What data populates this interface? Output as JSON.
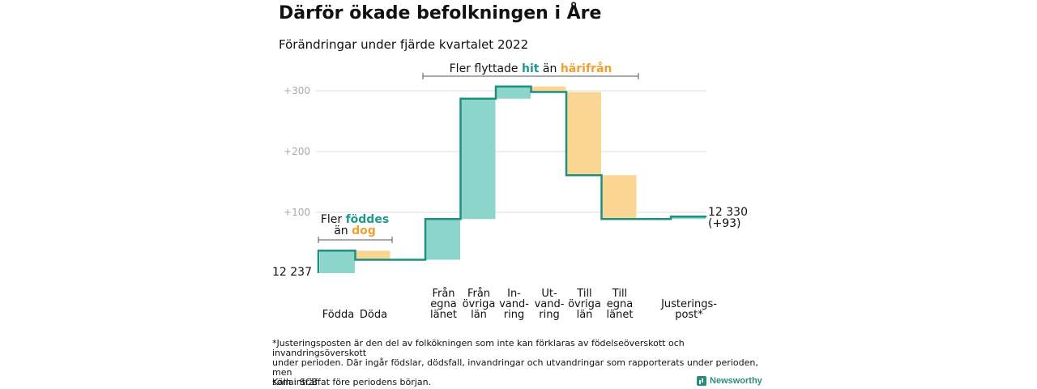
{
  "title": "Därför ökade befolkningen i Åre",
  "subtitle": "Förändringar under fjärde kvartalet 2022",
  "colors": {
    "teal": "#8cd5cb",
    "orange": "#fbd592",
    "line": "#1e9080",
    "tealText": "#1e9a8a",
    "orangeText": "#f0a030",
    "grid": "#dddddd"
  },
  "annotations": {
    "flows": {
      "pre": "Fler flyttade ",
      "hit": "hit",
      "mid": " än ",
      "harifran": "härifrån"
    },
    "births": {
      "pre": "Fler ",
      "foddes": "föddes",
      "an": "än ",
      "dog": "dog"
    }
  },
  "chart_data": {
    "type": "waterfall",
    "title": "Därför ökade befolkningen i Åre",
    "subtitle": "Förändringar under fjärde kvartalet 2022",
    "base": 12237,
    "start_label": "12 237",
    "end_label": "12 330",
    "end_change_label": "(+93)",
    "yticks": [
      {
        "value": 100,
        "label": "+100"
      },
      {
        "value": 200,
        "label": "+200"
      },
      {
        "value": 300,
        "label": "+300"
      }
    ],
    "ylim": [
      0,
      310
    ],
    "steps": [
      {
        "label": [
          "Födda"
        ],
        "delta": 37,
        "kind": "increase"
      },
      {
        "label": [
          "Döda"
        ],
        "delta": -15,
        "kind": "decrease"
      },
      {
        "label": [
          "Från",
          "egna",
          "länet"
        ],
        "delta": 67,
        "kind": "increase"
      },
      {
        "label": [
          "Från",
          "övriga",
          "län"
        ],
        "delta": 198,
        "kind": "increase"
      },
      {
        "label": [
          "In-",
          "vand-",
          "ring"
        ],
        "delta": 20,
        "kind": "increase"
      },
      {
        "label": [
          "Ut-",
          "vand-",
          "ring"
        ],
        "delta": -9,
        "kind": "decrease"
      },
      {
        "label": [
          "Till",
          "övriga",
          "län"
        ],
        "delta": -137,
        "kind": "decrease"
      },
      {
        "label": [
          "Till",
          "egna",
          "länet"
        ],
        "delta": -72,
        "kind": "decrease"
      },
      {
        "label": [
          "Justerings-",
          "post*"
        ],
        "delta": 4,
        "kind": "increase"
      }
    ],
    "total_change": 93
  },
  "footnote": {
    "line1": "*Justeringsposten är den del av folkökningen som inte kan förklaras av födelseöverskott och invandringsöverskott",
    "line2": "under perioden. Där ingår födslar, dödsfall, invandringar och utvandringar som rapporterats under perioden, men",
    "line3": "som inträffat före periodens början."
  },
  "source": "Källa: SCB",
  "logo": "Newsworthy"
}
